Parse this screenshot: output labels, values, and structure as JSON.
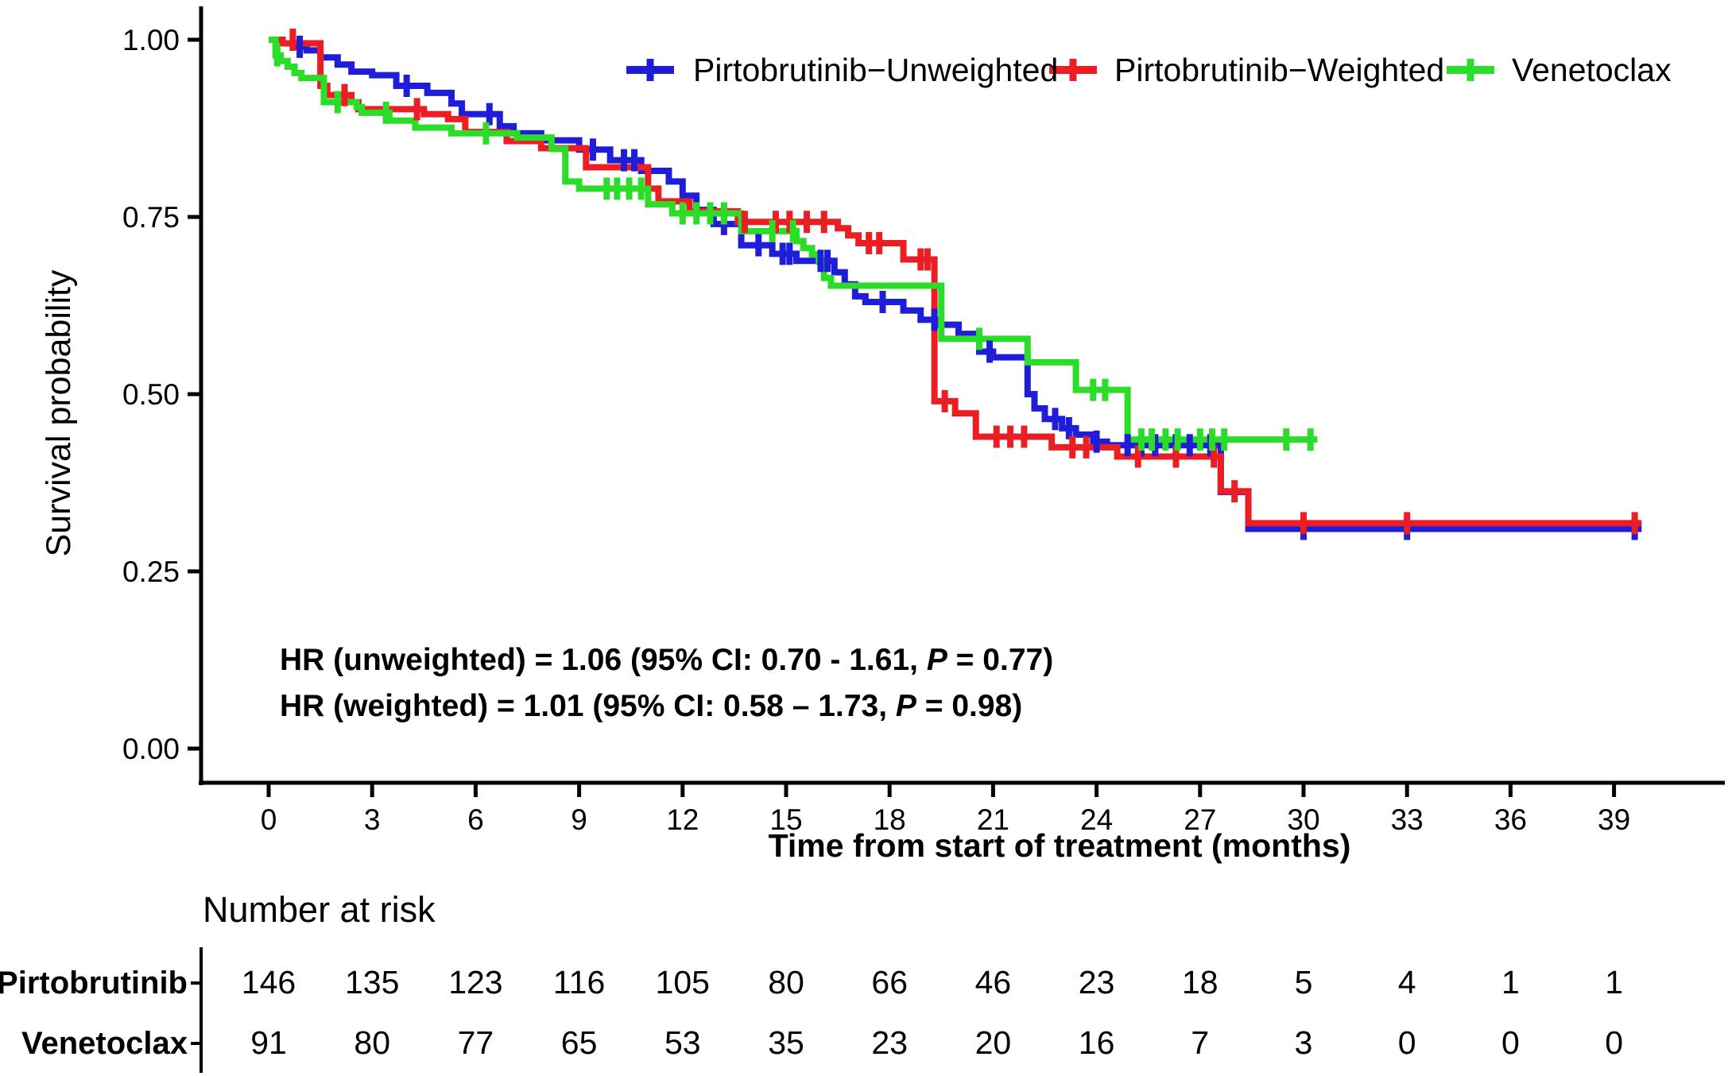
{
  "chart_data": {
    "type": "line",
    "subtype": "kaplan-meier-step",
    "title": "",
    "xlabel": "Time from start of treatment (months)",
    "ylabel": "Survival probability",
    "xlim": [
      0,
      42
    ],
    "ylim": [
      0.0,
      1.0
    ],
    "grid": false,
    "legend_position": "top",
    "x_ticks": [
      0,
      3,
      6,
      9,
      12,
      15,
      18,
      21,
      24,
      27,
      30,
      33,
      36,
      39
    ],
    "y_ticks": [
      {
        "value": 1.0,
        "label": "1.00"
      },
      {
        "value": 0.75,
        "label": "0.75"
      },
      {
        "value": 0.5,
        "label": "0.50"
      },
      {
        "value": 0.25,
        "label": "0.25"
      },
      {
        "value": 0.0,
        "label": "0.00"
      }
    ],
    "series": [
      {
        "name": "Pirtobrutinib−Unweighted",
        "color": "#1e1ed8",
        "end_t": 39.8,
        "steps": [
          [
            0,
            1.0
          ],
          [
            0.4,
            0.995
          ],
          [
            0.7,
            0.99
          ],
          [
            1.1,
            0.985
          ],
          [
            1.5,
            0.975
          ],
          [
            2.0,
            0.965
          ],
          [
            2.4,
            0.955
          ],
          [
            3.0,
            0.95
          ],
          [
            3.7,
            0.935
          ],
          [
            4.6,
            0.925
          ],
          [
            5.3,
            0.91
          ],
          [
            5.6,
            0.895
          ],
          [
            6.7,
            0.878
          ],
          [
            7.1,
            0.868
          ],
          [
            7.9,
            0.858
          ],
          [
            9.0,
            0.845
          ],
          [
            9.9,
            0.83
          ],
          [
            10.8,
            0.815
          ],
          [
            11.6,
            0.8
          ],
          [
            12.0,
            0.78
          ],
          [
            12.4,
            0.76
          ],
          [
            12.9,
            0.74
          ],
          [
            13.7,
            0.71
          ],
          [
            14.6,
            0.698
          ],
          [
            15.3,
            0.688
          ],
          [
            16.4,
            0.672
          ],
          [
            16.7,
            0.655
          ],
          [
            17.0,
            0.638
          ],
          [
            17.3,
            0.63
          ],
          [
            18.4,
            0.618
          ],
          [
            18.9,
            0.605
          ],
          [
            19.4,
            0.598
          ],
          [
            20.0,
            0.585
          ],
          [
            20.6,
            0.56
          ],
          [
            21.0,
            0.552
          ],
          [
            22.0,
            0.5
          ],
          [
            22.2,
            0.48
          ],
          [
            22.5,
            0.465
          ],
          [
            23.0,
            0.452
          ],
          [
            23.4,
            0.443
          ],
          [
            23.9,
            0.433
          ],
          [
            24.3,
            0.428
          ],
          [
            27.6,
            0.362
          ],
          [
            28.4,
            0.31
          ]
        ],
        "censor_ticks": [
          [
            0.9,
            0.99
          ],
          [
            4.0,
            0.935
          ],
          [
            6.4,
            0.895
          ],
          [
            9.4,
            0.845
          ],
          [
            10.3,
            0.83
          ],
          [
            10.6,
            0.83
          ],
          [
            13.2,
            0.74
          ],
          [
            14.2,
            0.71
          ],
          [
            14.9,
            0.698
          ],
          [
            15.1,
            0.698
          ],
          [
            16.0,
            0.688
          ],
          [
            16.2,
            0.688
          ],
          [
            17.8,
            0.63
          ],
          [
            19.3,
            0.605
          ],
          [
            20.9,
            0.56
          ],
          [
            22.8,
            0.465
          ],
          [
            23.2,
            0.452
          ],
          [
            24.0,
            0.433
          ],
          [
            24.9,
            0.428
          ],
          [
            25.3,
            0.428
          ],
          [
            25.7,
            0.428
          ],
          [
            26.3,
            0.428
          ],
          [
            26.7,
            0.428
          ],
          [
            27.3,
            0.428
          ],
          [
            30.0,
            0.31
          ],
          [
            33.0,
            0.31
          ],
          [
            39.6,
            0.31
          ]
        ]
      },
      {
        "name": "Pirtobrutinib−Weighted",
        "color": "#eb1e23",
        "end_t": 39.8,
        "steps": [
          [
            0,
            1.0
          ],
          [
            0.4,
            0.995
          ],
          [
            1.5,
            0.935
          ],
          [
            1.7,
            0.922
          ],
          [
            2.4,
            0.912
          ],
          [
            2.6,
            0.902
          ],
          [
            4.5,
            0.895
          ],
          [
            5.2,
            0.888
          ],
          [
            5.7,
            0.87
          ],
          [
            6.9,
            0.857
          ],
          [
            7.9,
            0.847
          ],
          [
            9.2,
            0.82
          ],
          [
            11.0,
            0.79
          ],
          [
            11.3,
            0.772
          ],
          [
            12.2,
            0.758
          ],
          [
            13.6,
            0.743
          ],
          [
            16.5,
            0.734
          ],
          [
            16.8,
            0.724
          ],
          [
            17.1,
            0.713
          ],
          [
            18.4,
            0.69
          ],
          [
            19.3,
            0.49
          ],
          [
            19.9,
            0.473
          ],
          [
            20.5,
            0.44
          ],
          [
            22.7,
            0.425
          ],
          [
            24.6,
            0.412
          ],
          [
            27.6,
            0.363
          ],
          [
            28.4,
            0.318
          ]
        ],
        "censor_ticks": [
          [
            0.7,
            1.0
          ],
          [
            2.2,
            0.922
          ],
          [
            4.3,
            0.902
          ],
          [
            13.8,
            0.743
          ],
          [
            14.7,
            0.743
          ],
          [
            15.1,
            0.743
          ],
          [
            15.6,
            0.743
          ],
          [
            16.1,
            0.743
          ],
          [
            17.4,
            0.713
          ],
          [
            17.7,
            0.713
          ],
          [
            18.9,
            0.69
          ],
          [
            19.1,
            0.69
          ],
          [
            19.6,
            0.49
          ],
          [
            21.1,
            0.44
          ],
          [
            21.5,
            0.44
          ],
          [
            21.9,
            0.44
          ],
          [
            23.3,
            0.425
          ],
          [
            23.7,
            0.425
          ],
          [
            25.2,
            0.412
          ],
          [
            26.3,
            0.412
          ],
          [
            27.4,
            0.412
          ],
          [
            28.0,
            0.363
          ],
          [
            30.0,
            0.318
          ],
          [
            33.0,
            0.318
          ],
          [
            39.6,
            0.318
          ]
        ]
      },
      {
        "name": "Venetoclax",
        "color": "#2bdd28",
        "end_t": 30.4,
        "steps": [
          [
            0,
            1.0
          ],
          [
            0.2,
            0.978
          ],
          [
            0.35,
            0.97
          ],
          [
            0.55,
            0.962
          ],
          [
            0.75,
            0.953
          ],
          [
            0.95,
            0.946
          ],
          [
            1.6,
            0.912
          ],
          [
            2.55,
            0.905
          ],
          [
            2.7,
            0.897
          ],
          [
            3.5,
            0.886
          ],
          [
            4.25,
            0.876
          ],
          [
            5.3,
            0.868
          ],
          [
            7.2,
            0.862
          ],
          [
            8.2,
            0.846
          ],
          [
            8.6,
            0.8
          ],
          [
            9.0,
            0.79
          ],
          [
            11.0,
            0.768
          ],
          [
            11.7,
            0.755
          ],
          [
            13.7,
            0.73
          ],
          [
            15.3,
            0.716
          ],
          [
            15.5,
            0.706
          ],
          [
            15.75,
            0.697
          ],
          [
            15.95,
            0.687
          ],
          [
            16.1,
            0.664
          ],
          [
            16.3,
            0.653
          ],
          [
            19.5,
            0.578
          ],
          [
            22.0,
            0.545
          ],
          [
            23.4,
            0.506
          ],
          [
            24.9,
            0.436
          ]
        ],
        "censor_ticks": [
          [
            0.25,
            0.978
          ],
          [
            2.0,
            0.912
          ],
          [
            3.4,
            0.897
          ],
          [
            6.3,
            0.868
          ],
          [
            9.8,
            0.79
          ],
          [
            10.1,
            0.79
          ],
          [
            10.45,
            0.79
          ],
          [
            10.8,
            0.79
          ],
          [
            12.0,
            0.755
          ],
          [
            12.4,
            0.755
          ],
          [
            12.8,
            0.755
          ],
          [
            13.2,
            0.755
          ],
          [
            14.6,
            0.73
          ],
          [
            15.2,
            0.73
          ],
          [
            20.6,
            0.578
          ],
          [
            23.9,
            0.506
          ],
          [
            24.25,
            0.506
          ],
          [
            25.3,
            0.436
          ],
          [
            25.6,
            0.436
          ],
          [
            26.0,
            0.436
          ],
          [
            26.35,
            0.436
          ],
          [
            27.0,
            0.436
          ],
          [
            27.35,
            0.436
          ],
          [
            27.7,
            0.436
          ],
          [
            29.5,
            0.436
          ],
          [
            30.2,
            0.436
          ]
        ]
      }
    ],
    "annotations": [
      {
        "pre": "HR (unweighted) = 1.06 (95% CI: 0.70 - 1.61, ",
        "p_label": "P",
        "post": " = 0.77)"
      },
      {
        "pre": "HR (weighted) = 1.01 (95% CI: 0.58 – 1.73, ",
        "p_label": "P",
        "post": " = 0.98)"
      }
    ],
    "risk_table": {
      "title": "Number at risk",
      "time_points": [
        0,
        3,
        6,
        9,
        12,
        15,
        18,
        21,
        24,
        27,
        30,
        33,
        36,
        39
      ],
      "rows": [
        {
          "label": "Pirtobrutinib",
          "values": [
            146,
            135,
            123,
            116,
            105,
            80,
            66,
            46,
            23,
            18,
            5,
            4,
            1,
            1
          ]
        },
        {
          "label": "Venetoclax",
          "values": [
            91,
            80,
            77,
            65,
            53,
            35,
            23,
            20,
            16,
            7,
            3,
            0,
            0,
            0
          ]
        }
      ]
    }
  }
}
